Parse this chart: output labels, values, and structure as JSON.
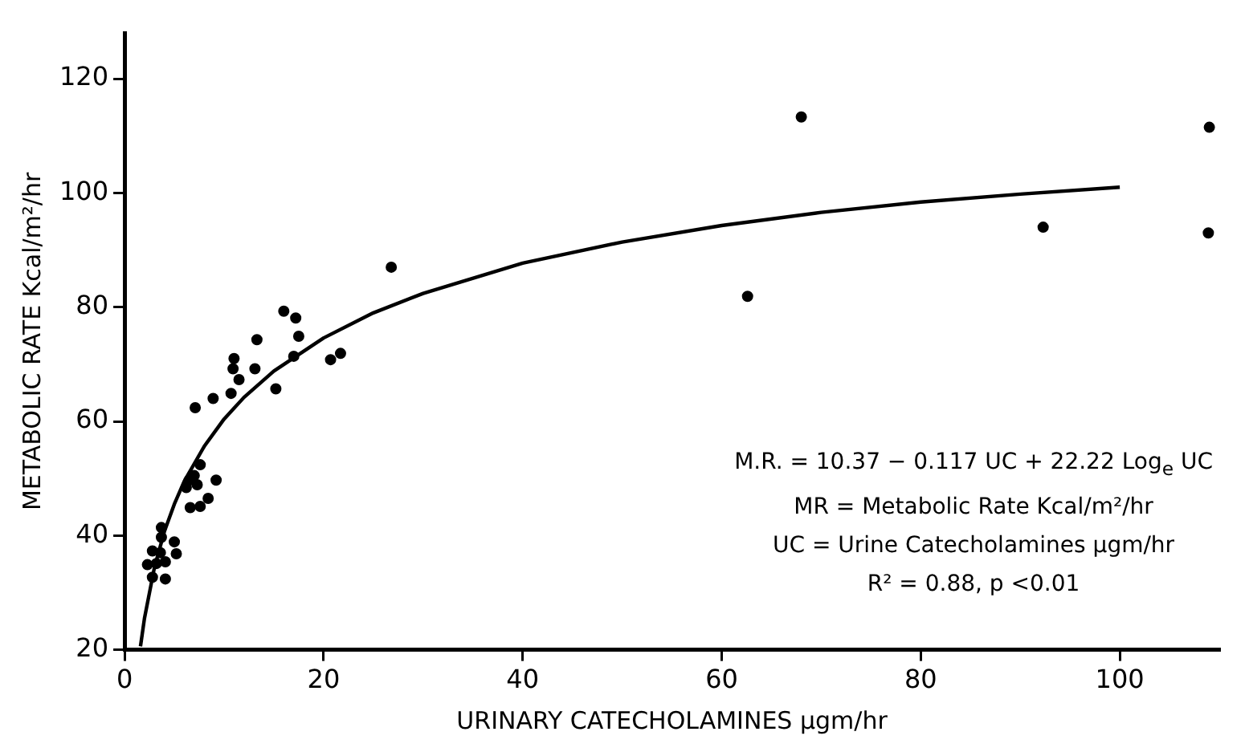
{
  "chart_data": {
    "type": "scatter",
    "xlabel": "URINARY CATECHOLAMINES μgm/hr",
    "ylabel": "METABOLIC RATE Kcal/m²/hr",
    "xlim": [
      0,
      110
    ],
    "ylim": [
      20,
      128
    ],
    "xticks": [
      0,
      20,
      40,
      60,
      80,
      100
    ],
    "yticks": [
      20,
      40,
      60,
      80,
      100,
      120
    ],
    "marker": "circle",
    "legend": false,
    "annotations": [
      "M.R. = 10.37 − 0.117 UC + 22.22 Log$_{e}$ UC",
      "MR = Metabolic Rate   Kcal/m²/hr",
      "UC = Urine Catecholamines μgm/hr",
      "R² = 0.88, p <0.01"
    ],
    "series": [
      {
        "type": "scatter",
        "color": "#000000",
        "x": [
          13.3,
          17.5,
          17,
          20.7,
          21.7,
          11,
          10.9,
          11.5,
          13.1,
          15.2,
          10.7,
          8.9,
          7.1,
          7.6,
          7,
          6.5,
          9.2,
          7.3,
          6.2,
          8.4,
          6.6,
          7.6,
          3.7,
          3.7,
          5,
          2.8,
          3.6,
          5.2,
          2.3,
          3.2,
          4.1,
          2.8,
          4.1,
          16,
          17.2,
          26.8,
          62.6,
          68,
          92.3,
          109,
          108.9
        ],
        "values": [
          74.3,
          74.9,
          71.4,
          70.8,
          71.9,
          71,
          69.2,
          67.3,
          69.2,
          65.7,
          64.9,
          64,
          62.4,
          52.4,
          50.5,
          49.7,
          49.7,
          48.9,
          48.4,
          46.5,
          44.9,
          45.1,
          41.4,
          39.7,
          38.9,
          37.3,
          37,
          36.8,
          34.9,
          35.1,
          35.4,
          32.7,
          32.4,
          79.3,
          78.1,
          87,
          81.9,
          113.3,
          94,
          111.5,
          93
        ]
      },
      {
        "type": "line",
        "color": "#000000",
        "marker": "none",
        "x": [
          1.6,
          2,
          3,
          4,
          5,
          6,
          8,
          10,
          12,
          15,
          20,
          25,
          30,
          40,
          50,
          60,
          70,
          80,
          90,
          100
        ],
        "values": [
          20.6,
          25.5,
          34.4,
          40.7,
          45.5,
          49.5,
          55.6,
          60.4,
          64.2,
          68.8,
          74.6,
          79,
          82.4,
          87.7,
          91.4,
          94.3,
          96.6,
          98.4,
          99.8,
          101
        ]
      }
    ]
  }
}
